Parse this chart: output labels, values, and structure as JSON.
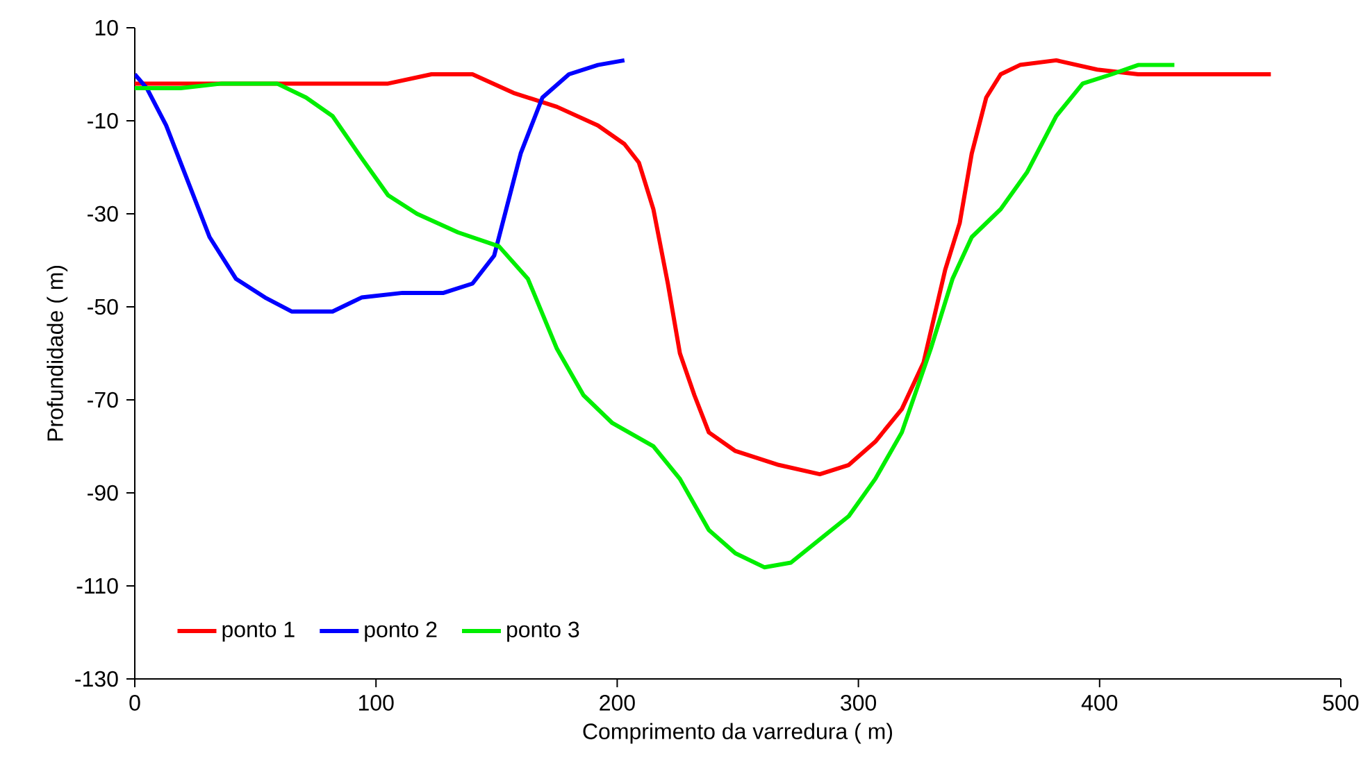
{
  "chart_data": {
    "type": "line",
    "xlabel": "Comprimento da varredura (  m)",
    "ylabel": "Profundidade (  m)",
    "xlim": [
      0,
      500
    ],
    "xticks": [
      0,
      100,
      200,
      300,
      400,
      500
    ],
    "ylim": [
      -130,
      10
    ],
    "yticks": [
      10,
      -10,
      -30,
      -50,
      -70,
      -90,
      -110,
      -130
    ],
    "legend": "bottom left",
    "grid": false,
    "marker": "none",
    "line_style": "solid",
    "series": [
      {
        "name": "ponto 1",
        "color": "#ff0000",
        "x": [
          0,
          105,
          123,
          140,
          157,
          175,
          192,
          203,
          209,
          215,
          221,
          226,
          232,
          238,
          249,
          267,
          284,
          296,
          307,
          318,
          327,
          336,
          342,
          347,
          353,
          359,
          367,
          382,
          399,
          416,
          445,
          471
        ],
        "values": [
          -2,
          -2,
          0,
          0,
          -4,
          -7,
          -11,
          -15,
          -19,
          -29,
          -45,
          -60,
          -69,
          -77,
          -81,
          -84,
          -86,
          -84,
          -79,
          -72,
          -62,
          -42,
          -32,
          -17,
          -5,
          0,
          2,
          3,
          1,
          0,
          0,
          0
        ]
      },
      {
        "name": "ponto 2",
        "color": "#0000ff",
        "x": [
          0,
          5,
          13,
          22,
          31,
          42,
          54,
          65,
          82,
          94,
          111,
          128,
          140,
          149,
          154,
          160,
          169,
          180,
          192,
          203
        ],
        "values": [
          0,
          -3,
          -11,
          -23,
          -35,
          -44,
          -48,
          -51,
          -51,
          -48,
          -47,
          -47,
          -45,
          -39,
          -29,
          -17,
          -5,
          0,
          2,
          3
        ]
      },
      {
        "name": "ponto 3",
        "color": "#00ee00",
        "x": [
          0,
          19,
          36,
          59,
          71,
          82,
          94,
          105,
          117,
          134,
          151,
          163,
          175,
          186,
          198,
          215,
          226,
          238,
          249,
          261,
          272,
          284,
          296,
          307,
          318,
          330,
          339,
          347,
          359,
          370,
          382,
          393,
          405,
          416,
          431
        ],
        "values": [
          -3,
          -3,
          -2,
          -2,
          -5,
          -9,
          -18,
          -26,
          -30,
          -34,
          -37,
          -44,
          -59,
          -69,
          -75,
          -80,
          -87,
          -98,
          -103,
          -106,
          -105,
          -100,
          -95,
          -87,
          -77,
          -59,
          -44,
          -35,
          -29,
          -21,
          -9,
          -2,
          0,
          2,
          2
        ]
      }
    ]
  }
}
